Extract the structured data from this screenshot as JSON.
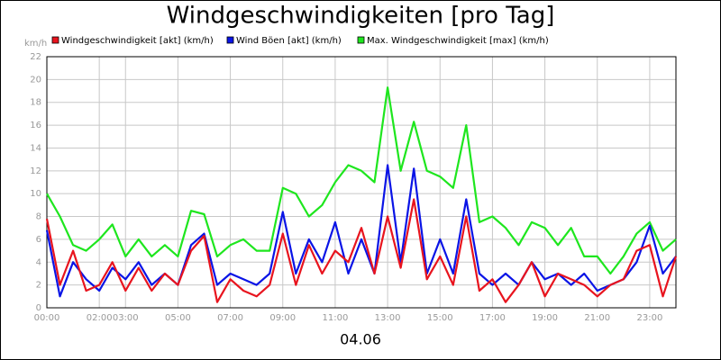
{
  "chart_data": {
    "type": "line",
    "title": "Windgeschwindigkeiten [pro Tag]",
    "y_label": "km/h",
    "x_label": "04.06",
    "xlim": [
      0,
      24
    ],
    "xticks": [
      {
        "value": 0,
        "label": "00:00"
      },
      {
        "value": 2,
        "label": "02:00"
      },
      {
        "value": 3,
        "label": "03:00"
      },
      {
        "value": 5,
        "label": "05:00"
      },
      {
        "value": 7,
        "label": "07:00"
      },
      {
        "value": 9,
        "label": "09:00"
      },
      {
        "value": 11,
        "label": "11:00"
      },
      {
        "value": 13,
        "label": "13:00"
      },
      {
        "value": 15,
        "label": "15:00"
      },
      {
        "value": 17,
        "label": "17:00"
      },
      {
        "value": 19,
        "label": "19:00"
      },
      {
        "value": 21,
        "label": "21:00"
      },
      {
        "value": 23,
        "label": "23:00"
      }
    ],
    "ylim": [
      0,
      22
    ],
    "yticks": [
      0,
      2,
      4,
      6,
      8,
      10,
      12,
      14,
      16,
      18,
      20,
      22
    ],
    "grid": true,
    "x": [
      0,
      0.5,
      1,
      1.5,
      2,
      2.5,
      3,
      3.5,
      4,
      4.5,
      5,
      5.5,
      6,
      6.5,
      7,
      7.5,
      8,
      8.5,
      9,
      9.5,
      10,
      10.5,
      11,
      11.5,
      12,
      12.5,
      13,
      13.5,
      14,
      14.5,
      15,
      15.5,
      16,
      16.5,
      17,
      17.5,
      18,
      18.5,
      19,
      19.5,
      20,
      20.5,
      21,
      21.5,
      22,
      22.5,
      23,
      23.5,
      24
    ],
    "series": [
      {
        "name": "Windgeschwindigkeit [akt] (km/h)",
        "color": "#e8141e",
        "values": [
          7.8,
          2,
          5,
          1.5,
          2,
          4,
          1.5,
          3.5,
          1.5,
          3,
          2,
          5,
          6.3,
          0.5,
          2.5,
          1.5,
          1,
          2,
          6.5,
          2,
          5.5,
          3,
          5,
          4,
          7,
          3,
          8,
          3.5,
          9.5,
          2.5,
          4.5,
          2,
          8,
          1.5,
          2.5,
          0.5,
          2,
          4,
          1,
          3,
          2.5,
          2,
          1,
          2,
          2.5,
          5,
          5.5,
          1,
          4.5
        ]
      },
      {
        "name": "Wind Böen [akt] (km/h)",
        "color": "#0a14e6",
        "values": [
          6.8,
          1,
          4,
          2.5,
          1.5,
          3.5,
          2.5,
          4,
          2,
          3,
          2,
          5.5,
          6.5,
          2,
          3,
          2.5,
          2,
          3,
          8.4,
          3,
          6,
          4,
          7.5,
          3,
          6,
          3,
          12.5,
          4,
          12.2,
          3,
          6,
          3,
          9.5,
          3,
          2,
          3,
          2,
          4,
          2.5,
          3,
          2,
          3,
          1.5,
          2,
          2.5,
          4,
          7.2,
          3,
          4.5
        ]
      },
      {
        "name": "Max. Windgeschwindigkeit [max] (km/h)",
        "color": "#1ee61e",
        "values": [
          10,
          8,
          5.5,
          5,
          6,
          7.3,
          4.5,
          6,
          4.5,
          5.5,
          4.5,
          8.5,
          8.2,
          4.5,
          5.5,
          6,
          5,
          5,
          10.5,
          10,
          8,
          9,
          11,
          12.5,
          12,
          11,
          19.3,
          12,
          16.3,
          12,
          11.5,
          10.5,
          16,
          7.5,
          8,
          7,
          5.5,
          7.5,
          7,
          5.5,
          7,
          4.5,
          4.5,
          3,
          4.5,
          6.5,
          7.5,
          5,
          6
        ]
      }
    ]
  }
}
